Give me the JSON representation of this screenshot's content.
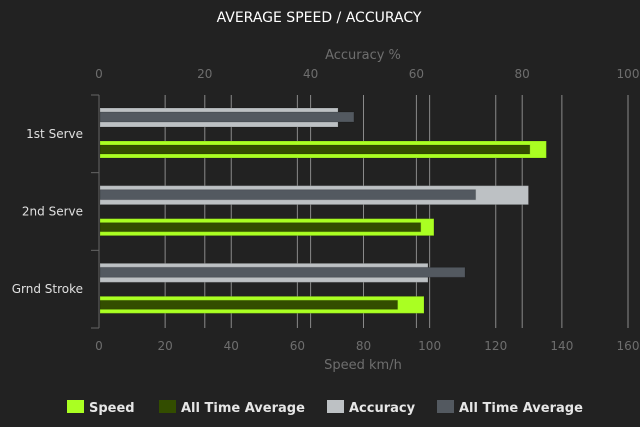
{
  "chart_data": {
    "type": "bar",
    "orientation": "horizontal",
    "title": "AVERAGE SPEED / ACCURACY",
    "categories": [
      "1st Serve",
      "2nd Serve",
      "Grnd Stroke"
    ],
    "x_top": {
      "label": "Accuracy %",
      "range": [
        0,
        100
      ],
      "ticks": [
        0,
        20,
        40,
        60,
        80,
        100
      ]
    },
    "x_bottom": {
      "label": "Speed km/h",
      "range": [
        0,
        160
      ],
      "ticks": [
        0,
        20,
        40,
        60,
        80,
        100,
        120,
        140,
        160
      ]
    },
    "series": [
      {
        "name": "Speed",
        "axis": "bottom",
        "color": "#aaff22",
        "values": [
          135,
          101,
          98
        ]
      },
      {
        "name": "All Time Average",
        "axis": "bottom",
        "color": "#334d00",
        "values": [
          130,
          97,
          90
        ]
      },
      {
        "name": "Accuracy",
        "axis": "top",
        "color": "#bdc1c4",
        "values": [
          45,
          81,
          62
        ]
      },
      {
        "name": "All Time Average",
        "axis": "top",
        "color": "#535960",
        "values": [
          48,
          71,
          69
        ]
      }
    ],
    "grid": true,
    "legend_position": "bottom"
  }
}
